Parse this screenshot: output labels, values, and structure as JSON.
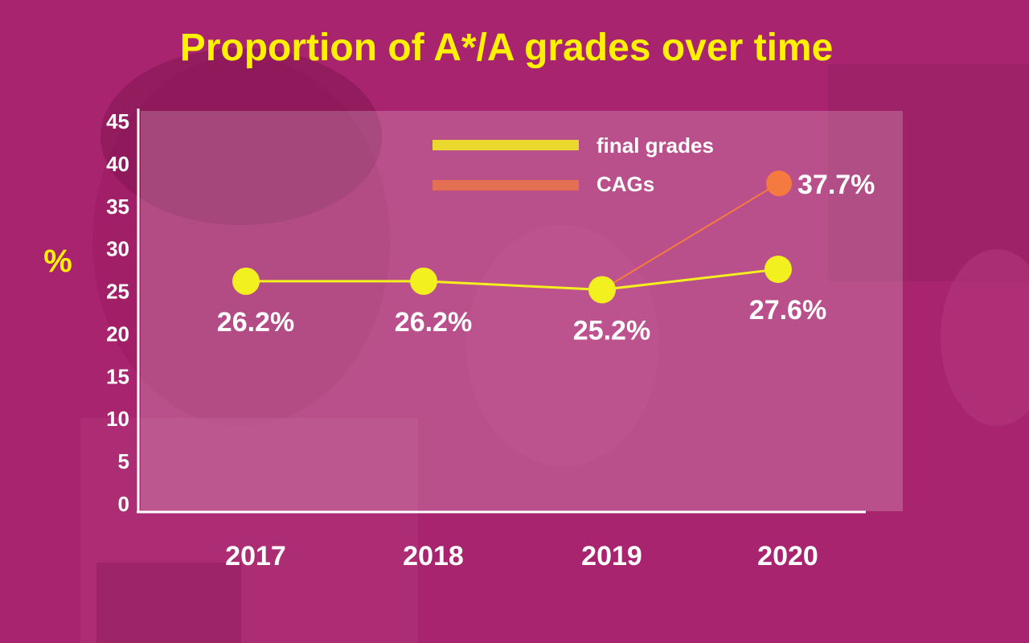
{
  "colors": {
    "background": "#a8246e",
    "title": "#fff200",
    "final_grades": "#f3f01f",
    "cags": "#f47a40",
    "text": "#ffffff"
  },
  "chart_data": {
    "type": "line",
    "title": "Proportion of A*/A grades over time",
    "xlabel": "",
    "ylabel": "%",
    "categories": [
      "2017",
      "2018",
      "2019",
      "2020"
    ],
    "ylim": [
      0,
      45
    ],
    "yticks": [
      0,
      5,
      10,
      15,
      20,
      25,
      30,
      35,
      40,
      45
    ],
    "legend_position": "top-right",
    "series": [
      {
        "name": "final grades",
        "color": "#f3f01f",
        "values": [
          26.2,
          26.2,
          25.2,
          27.6
        ],
        "labels": [
          "26.2%",
          "26.2%",
          "25.2%",
          "27.6%"
        ]
      },
      {
        "name": "CAGs",
        "color": "#f47a40",
        "x": [
          "2019",
          "2020"
        ],
        "values": [
          25.2,
          37.7
        ],
        "labels": [
          "",
          "37.7%"
        ]
      }
    ]
  }
}
